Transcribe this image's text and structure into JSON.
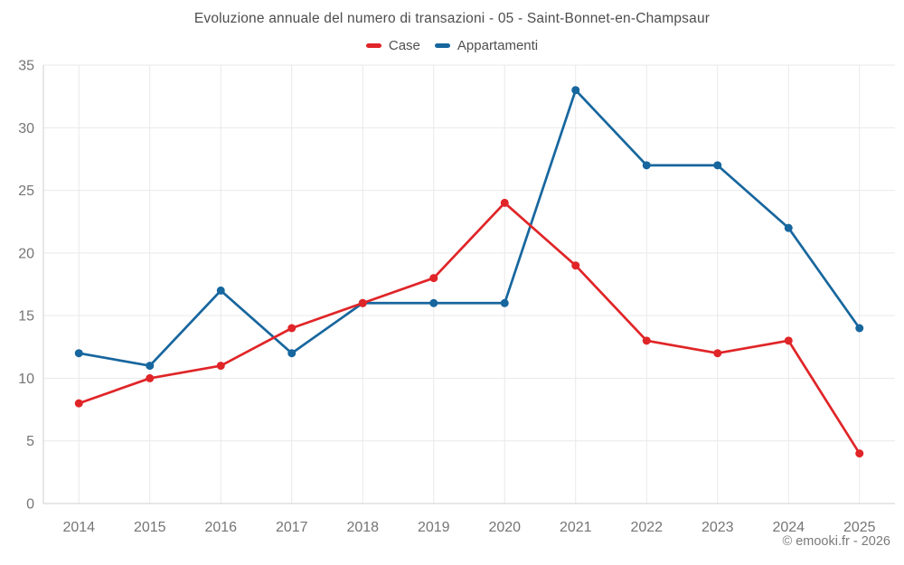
{
  "title": "Evoluzione annuale del numero di transazioni - 05 - Saint-Bonnet-en-Champsaur",
  "footer": "© emooki.fr - 2026",
  "chart_data": {
    "type": "line",
    "title": "Evoluzione annuale del numero di transazioni - 05 - Saint-Bonnet-en-Champsaur",
    "xlabel": "",
    "ylabel": "",
    "categories": [
      "2014",
      "2015",
      "2016",
      "2017",
      "2018",
      "2019",
      "2020",
      "2021",
      "2022",
      "2023",
      "2024",
      "2025"
    ],
    "series": [
      {
        "name": "Case",
        "color": "#e02528",
        "values": [
          8,
          10,
          11,
          14,
          16,
          18,
          24,
          19,
          13,
          12,
          13,
          4
        ]
      },
      {
        "name": "Appartamenti",
        "color": "#17669e",
        "values": [
          12,
          11,
          17,
          12,
          16,
          16,
          16,
          33,
          27,
          27,
          22,
          14
        ]
      }
    ],
    "ylim": [
      0,
      35
    ],
    "y_ticks": [
      0,
      5,
      10,
      15,
      20,
      25,
      30,
      35
    ],
    "grid": "both",
    "legend_position": "top",
    "markers": true
  }
}
